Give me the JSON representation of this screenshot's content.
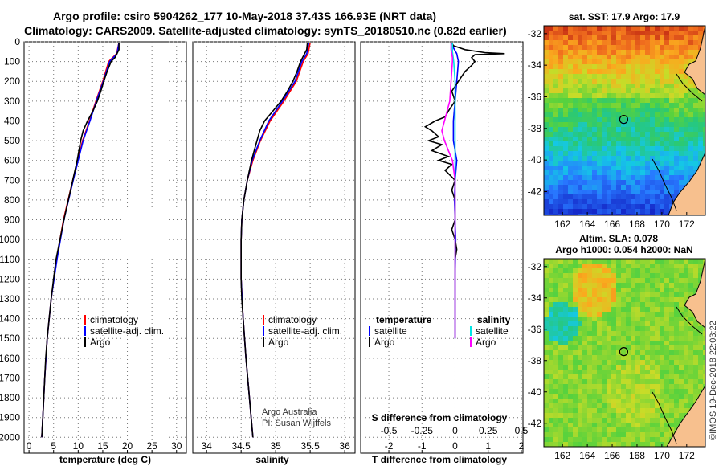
{
  "header": {
    "line1": "Argo profile: csiro 5904262_177 10-May-2018 37.43S 166.93E (NRT data)",
    "line2": "Climatology: CARS2009. Satellite-adjusted climatology: synTS_20180510.nc (0.82d earlier)"
  },
  "colors": {
    "climatology": "#ff0000",
    "satellite": "#0000ff",
    "argo": "#000000",
    "sal_satellite": "#00e5e5",
    "sal_argo": "#ff00ff",
    "land": "#f7c08e"
  },
  "chart_data": [
    {
      "id": "temperature",
      "type": "line",
      "xlabel": "temperature (deg C)",
      "ylabel": "",
      "xlim": [
        -1,
        32
      ],
      "ylim": [
        2080,
        0
      ],
      "xticks": [
        "0",
        "5",
        "10",
        "15",
        "20",
        "25",
        "30"
      ],
      "xtick_values": [
        0,
        5,
        10,
        15,
        20,
        25,
        30
      ],
      "yticks": [
        "0",
        "100",
        "200",
        "300",
        "400",
        "500",
        "600",
        "700",
        "800",
        "900",
        "1000",
        "1100",
        "1200",
        "1300",
        "1400",
        "1500",
        "1600",
        "1700",
        "1800",
        "1900",
        "2000"
      ],
      "ytick_values": [
        0,
        100,
        200,
        300,
        400,
        500,
        600,
        700,
        800,
        900,
        1000,
        1100,
        1200,
        1300,
        1400,
        1500,
        1600,
        1700,
        1800,
        1900,
        2000
      ],
      "legend": [
        "climatology",
        "satellite-adj. clim.",
        "Argo"
      ],
      "series": [
        {
          "name": "climatology",
          "color": "#ff0000",
          "depth": [
            5,
            60,
            100,
            200,
            300,
            400,
            500,
            700,
            900,
            1100,
            1300,
            1500,
            1700,
            1900,
            2000
          ],
          "values": [
            18.3,
            17.8,
            16.2,
            15.0,
            13.6,
            12.3,
            10.9,
            8.9,
            7.0,
            5.6,
            4.5,
            3.7,
            3.2,
            2.8,
            2.6
          ]
        },
        {
          "name": "satellite-adj. clim.",
          "color": "#0000ff",
          "depth": [
            5,
            60,
            100,
            200,
            300,
            400,
            500,
            700,
            900,
            1100,
            1300,
            1500,
            1700,
            1900,
            2000
          ],
          "values": [
            18.3,
            17.9,
            16.4,
            15.1,
            13.7,
            12.4,
            11.0,
            9.0,
            7.1,
            5.7,
            4.5,
            3.7,
            3.2,
            2.8,
            2.6
          ]
        },
        {
          "name": "Argo",
          "color": "#000000",
          "depth": [
            5,
            40,
            80,
            100,
            150,
            200,
            250,
            300,
            350,
            400,
            450,
            500,
            600,
            700,
            800,
            900,
            1000,
            1100,
            1200,
            1300,
            1400,
            1500,
            1600,
            1700,
            1800,
            1900,
            2000
          ],
          "values": [
            18.3,
            18.3,
            17.5,
            16.7,
            15.9,
            15.2,
            14.6,
            13.9,
            13.0,
            11.9,
            11.0,
            10.5,
            9.8,
            8.9,
            8.0,
            7.1,
            6.3,
            5.5,
            5.0,
            4.5,
            4.1,
            3.7,
            3.4,
            3.2,
            3.0,
            2.8,
            2.6
          ]
        }
      ]
    },
    {
      "id": "salinity",
      "type": "line",
      "xlabel": "salinity",
      "xlim": [
        33.8,
        36.15
      ],
      "ylim": [
        2080,
        0
      ],
      "xticks": [
        "34",
        "34.5",
        "35",
        "35.5",
        "36"
      ],
      "xtick_values": [
        34,
        34.5,
        35,
        35.5,
        36
      ],
      "legend": [
        "climatology",
        "satellite-adj. clim.",
        "Argo"
      ],
      "credits": [
        "Argo Australia",
        "PI: Susan Wijffels"
      ],
      "series": [
        {
          "name": "climatology",
          "color": "#ff0000",
          "depth": [
            5,
            60,
            100,
            200,
            300,
            400,
            500,
            600,
            700,
            800,
            900,
            1000,
            1200,
            1400,
            1600,
            1800,
            2000
          ],
          "values": [
            35.5,
            35.47,
            35.4,
            35.3,
            35.12,
            34.92,
            34.78,
            34.67,
            34.59,
            34.54,
            34.51,
            34.5,
            34.5,
            34.53,
            34.57,
            34.62,
            34.67
          ]
        },
        {
          "name": "satellite-adj. clim.",
          "color": "#0000ff",
          "depth": [
            5,
            60,
            100,
            200,
            300,
            400,
            500,
            600,
            700,
            800,
            900,
            1000,
            1200,
            1400,
            1600,
            1800,
            2000
          ],
          "values": [
            35.48,
            35.45,
            35.38,
            35.28,
            35.1,
            34.9,
            34.77,
            34.66,
            34.59,
            34.54,
            34.51,
            34.5,
            34.5,
            34.53,
            34.57,
            34.62,
            34.67
          ]
        },
        {
          "name": "Argo",
          "color": "#000000",
          "depth": [
            5,
            40,
            100,
            150,
            200,
            250,
            300,
            350,
            400,
            450,
            500,
            550,
            600,
            700,
            800,
            900,
            1000,
            1100,
            1200,
            1300,
            1400,
            1600,
            1800,
            2000
          ],
          "values": [
            35.46,
            35.45,
            35.36,
            35.31,
            35.25,
            35.17,
            35.08,
            34.96,
            34.84,
            34.77,
            34.73,
            34.69,
            34.65,
            34.59,
            34.54,
            34.51,
            34.5,
            34.5,
            34.5,
            34.51,
            34.53,
            34.57,
            34.62,
            34.67
          ]
        }
      ]
    },
    {
      "id": "difference",
      "type": "line",
      "xlabel": "T difference from climatology",
      "secondary_xlabel": "S difference from climatology",
      "xlim": [
        -2.85,
        2.05
      ],
      "ylim": [
        2080,
        0
      ],
      "xticks": [
        "-2",
        "-1",
        "0",
        "1",
        "2"
      ],
      "xtick_values": [
        -2,
        -1,
        0,
        1,
        2
      ],
      "sticks": [
        "-0.5",
        "-0.25",
        "0",
        "0.25",
        "0.5"
      ],
      "stick_values": [
        -0.5,
        -0.25,
        0,
        0.25,
        0.5
      ],
      "legend_temperature": {
        "title": "temperature",
        "items": [
          "satellite",
          "Argo"
        ]
      },
      "legend_salinity": {
        "title": "salinity",
        "items": [
          "satellite",
          "Argo"
        ]
      },
      "series": [
        {
          "name": "T satellite",
          "color": "#0000ff",
          "depth": [
            5,
            30,
            60,
            100,
            200,
            300,
            400,
            500,
            600,
            700,
            800,
            900,
            1000,
            1200,
            1500
          ],
          "values": [
            -0.1,
            -0.05,
            0.05,
            0.1,
            0.05,
            0.0,
            -0.05,
            -0.05,
            0.05,
            0.0,
            -0.02,
            0.0,
            0.02,
            0.0,
            0.0
          ]
        },
        {
          "name": "T Argo",
          "color": "#000000",
          "depth": [
            5,
            20,
            40,
            55,
            60,
            65,
            80,
            100,
            120,
            150,
            200,
            250,
            300,
            350,
            380,
            400,
            430,
            450,
            480,
            500,
            520,
            550,
            580,
            600,
            620,
            650,
            700,
            750,
            800,
            900,
            950,
            1000,
            1050,
            1100,
            1200,
            1300,
            1400,
            1500
          ],
          "values": [
            -0.1,
            -0.05,
            0.3,
            0.9,
            1.5,
            0.6,
            0.5,
            0.6,
            0.5,
            0.3,
            0.1,
            -0.1,
            0.0,
            -0.2,
            -0.3,
            -0.6,
            -0.9,
            -0.7,
            -0.5,
            -0.8,
            -0.4,
            -0.7,
            -0.2,
            -0.5,
            -0.1,
            -0.3,
            0.0,
            -0.1,
            0.0,
            0.0,
            -0.1,
            0.0,
            0.05,
            0.0,
            0.0,
            0.0,
            0.0,
            0.0
          ]
        },
        {
          "name": "S satellite",
          "color": "#00e5e5",
          "depth": [
            5,
            50,
            100,
            200,
            300,
            400,
            500,
            600,
            800,
            1000,
            1200,
            1500
          ],
          "values": [
            -0.02,
            -0.02,
            -0.01,
            0.0,
            0.0,
            0.0,
            0.0,
            0.0,
            0.0,
            0.0,
            0.0,
            0.0
          ]
        },
        {
          "name": "S Argo",
          "color": "#ff00ff",
          "depth": [
            5,
            40,
            80,
            100,
            200,
            300,
            350,
            400,
            450,
            500,
            550,
            600,
            700,
            800,
            1000,
            1200,
            1500
          ],
          "values": [
            -0.03,
            -0.03,
            -0.02,
            -0.02,
            -0.03,
            -0.04,
            -0.06,
            -0.08,
            -0.1,
            -0.08,
            -0.05,
            -0.02,
            0.0,
            0.0,
            0.0,
            0.0,
            0.0
          ]
        }
      ]
    }
  ],
  "maps": [
    {
      "id": "sst",
      "title": "sat. SST: 17.9 Argo: 17.9",
      "lon_ticks": [
        "162",
        "164",
        "166",
        "168",
        "170",
        "172"
      ],
      "lon_values": [
        162,
        164,
        166,
        168,
        170,
        172
      ],
      "lat_ticks": [
        "-32",
        "-34",
        "-36",
        "-38",
        "-40",
        "-42"
      ],
      "lat_values": [
        -32,
        -34,
        -36,
        -38,
        -40,
        -42
      ],
      "lon_range": [
        160.5,
        173.5
      ],
      "lat_range": [
        -43.5,
        -31.5
      ],
      "argo_lon": 166.93,
      "argo_lat": -37.43
    },
    {
      "id": "sla",
      "title_line1": "Altim. SLA: 0.078",
      "title_line2": "Argo h1000: 0.054 h2000: NaN",
      "lon_ticks": [
        "162",
        "164",
        "166",
        "168",
        "170",
        "172"
      ],
      "lon_values": [
        162,
        164,
        166,
        168,
        170,
        172
      ],
      "lat_ticks": [
        "-32",
        "-34",
        "-36",
        "-38",
        "-40",
        "-42"
      ],
      "lat_values": [
        -32,
        -34,
        -36,
        -38,
        -40,
        -42
      ],
      "lon_range": [
        160.5,
        173.5
      ],
      "lat_range": [
        -43.5,
        -31.5
      ],
      "argo_lon": 166.93,
      "argo_lat": -37.43
    }
  ],
  "imos_stamp": "©IMOS 19-Dec-2018 22:03:22"
}
